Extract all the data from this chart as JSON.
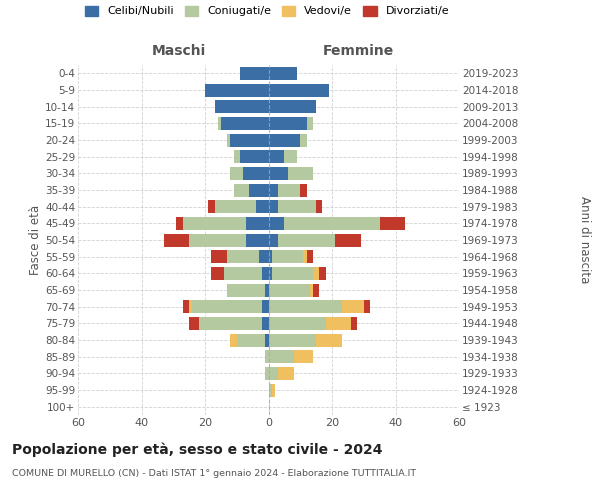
{
  "age_groups": [
    "100+",
    "95-99",
    "90-94",
    "85-89",
    "80-84",
    "75-79",
    "70-74",
    "65-69",
    "60-64",
    "55-59",
    "50-54",
    "45-49",
    "40-44",
    "35-39",
    "30-34",
    "25-29",
    "20-24",
    "15-19",
    "10-14",
    "5-9",
    "0-4"
  ],
  "birth_years": [
    "≤ 1923",
    "1924-1928",
    "1929-1933",
    "1934-1938",
    "1939-1943",
    "1944-1948",
    "1949-1953",
    "1954-1958",
    "1959-1963",
    "1964-1968",
    "1969-1973",
    "1974-1978",
    "1979-1983",
    "1984-1988",
    "1989-1993",
    "1994-1998",
    "1999-2003",
    "2004-2008",
    "2009-2013",
    "2014-2018",
    "2019-2023"
  ],
  "colors": {
    "celibi": "#3a6ea5",
    "coniugati": "#b5c9a1",
    "vedovi": "#f0c060",
    "divorziati": "#c0392b"
  },
  "males": {
    "celibi": [
      0,
      0,
      0,
      0,
      1,
      2,
      2,
      1,
      2,
      3,
      7,
      7,
      4,
      6,
      8,
      9,
      12,
      15,
      17,
      20,
      9
    ],
    "coniugati": [
      0,
      0,
      1,
      1,
      9,
      20,
      22,
      12,
      12,
      10,
      18,
      20,
      13,
      5,
      4,
      2,
      1,
      1,
      0,
      0,
      0
    ],
    "vedovi": [
      0,
      0,
      0,
      0,
      2,
      0,
      1,
      0,
      0,
      0,
      0,
      0,
      0,
      0,
      0,
      0,
      0,
      0,
      0,
      0,
      0
    ],
    "divorziati": [
      0,
      0,
      0,
      0,
      0,
      3,
      2,
      0,
      4,
      5,
      8,
      2,
      2,
      0,
      0,
      0,
      0,
      0,
      0,
      0,
      0
    ]
  },
  "females": {
    "celibi": [
      0,
      0,
      0,
      0,
      0,
      0,
      0,
      0,
      1,
      1,
      3,
      5,
      3,
      3,
      6,
      5,
      10,
      12,
      15,
      19,
      9
    ],
    "coniugati": [
      0,
      1,
      3,
      8,
      15,
      18,
      23,
      13,
      13,
      10,
      18,
      30,
      12,
      7,
      8,
      4,
      2,
      2,
      0,
      0,
      0
    ],
    "vedovi": [
      0,
      1,
      5,
      6,
      8,
      8,
      7,
      1,
      2,
      1,
      0,
      0,
      0,
      0,
      0,
      0,
      0,
      0,
      0,
      0,
      0
    ],
    "divorziati": [
      0,
      0,
      0,
      0,
      0,
      2,
      2,
      2,
      2,
      2,
      8,
      8,
      2,
      2,
      0,
      0,
      0,
      0,
      0,
      0,
      0
    ]
  },
  "title": "Popolazione per età, sesso e stato civile - 2024",
  "subtitle": "COMUNE DI MURELLO (CN) - Dati ISTAT 1° gennaio 2024 - Elaborazione TUTTITALIA.IT",
  "xlabel_left": "Maschi",
  "xlabel_right": "Femmine",
  "ylabel_left": "Fasce di età",
  "ylabel_right": "Anni di nascita",
  "xlim": 60,
  "background_color": "#ffffff",
  "grid_color": "#cccccc",
  "legend_labels": [
    "Celibi/Nubili",
    "Coniugati/e",
    "Vedovi/e",
    "Divorziati/e"
  ]
}
